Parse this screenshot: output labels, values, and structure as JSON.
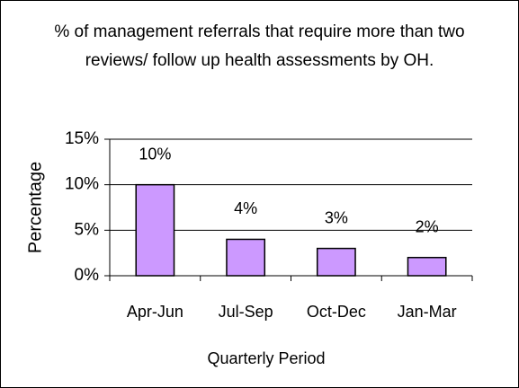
{
  "chart_data": {
    "type": "bar",
    "title": "% of management referrals that require more than two reviews/ follow up health assessments by OH.",
    "x_label": "Quarterly Period",
    "y_label": "Percentage",
    "categories": [
      "Apr-Jun",
      "Jul-Sep",
      "Oct-Dec",
      "Jan-Mar"
    ],
    "values": [
      10,
      4,
      3,
      2
    ],
    "value_labels": [
      "10%",
      "4%",
      "3%",
      "2%"
    ],
    "color": "#cc99ff",
    "ylim": [
      0,
      15
    ],
    "yticks": [
      {
        "value": 0,
        "label": "0%"
      },
      {
        "value": 5,
        "label": "5%"
      },
      {
        "value": 10,
        "label": "10%"
      },
      {
        "value": 15,
        "label": "15%"
      }
    ],
    "grid": true
  }
}
